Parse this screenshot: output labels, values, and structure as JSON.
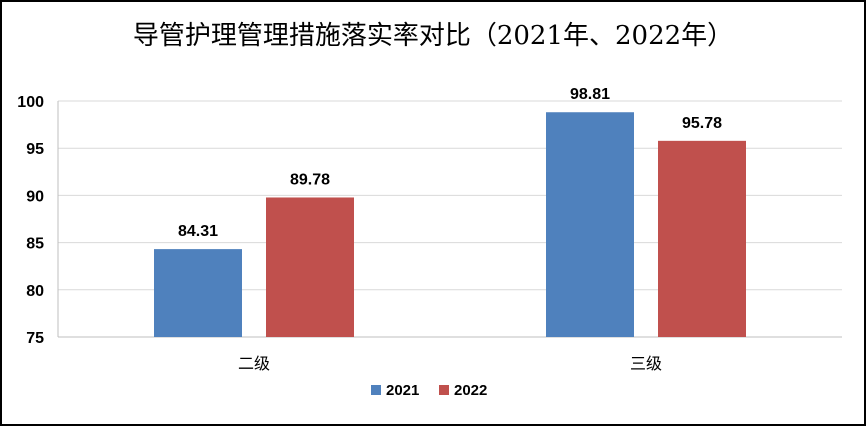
{
  "chart_data": {
    "type": "bar",
    "title": "导管护理管理措施落实率对比（2021年、2022年）",
    "categories": [
      "二级",
      "三级"
    ],
    "series": [
      {
        "name": "2021",
        "values": [
          84.31,
          98.81
        ],
        "color": "#4F81BD"
      },
      {
        "name": "2022",
        "values": [
          89.78,
          95.78
        ],
        "color": "#C0504D"
      }
    ],
    "data_labels": [
      [
        "84.31",
        "98.81"
      ],
      [
        "89.78",
        "95.78"
      ]
    ],
    "ylim": [
      75,
      100
    ],
    "yticks": [
      "75",
      "80",
      "85",
      "90",
      "95",
      "100"
    ],
    "grid": true,
    "legend_position": "bottom"
  }
}
